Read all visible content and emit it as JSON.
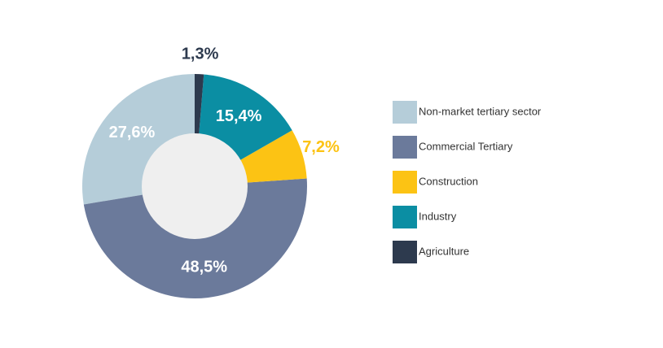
{
  "chart_data": {
    "type": "donut",
    "categories": [
      "Non-market tertiary sector",
      "Commercial Tertiary",
      "Construction",
      "Industry",
      "Agriculture"
    ],
    "values": [
      27.6,
      48.5,
      7.2,
      15.4,
      1.3
    ],
    "value_labels": [
      "27,6%",
      "48,5%",
      "7,2%",
      "15,4%",
      "1,3%"
    ],
    "colors": [
      "#b5cdd9",
      "#6b7a9b",
      "#fcc314",
      "#0b8ea3",
      "#2d3a4e"
    ]
  }
}
